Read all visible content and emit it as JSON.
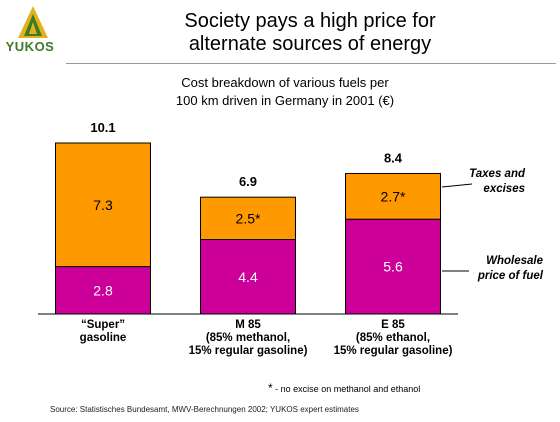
{
  "brand": {
    "name": "YUKOS",
    "icon": "yukos-flame-logo",
    "color": "#3c7a2a"
  },
  "title_line1": "Society pays a high price for",
  "title_line2": "alternate sources of energy",
  "subtitle_line1": "Cost breakdown of various fuels per",
  "subtitle_line2": "100 km driven in Germany in 2001 (€)",
  "footnote_marker": "*",
  "footnote_text": " - no excise on methanol and ethanol",
  "source": "Source: Statistisches Bundesamt, MWV-Berechnungen 2002; YUKOS expert estimates",
  "colors": {
    "wholesale": "#cc0099",
    "taxes": "#ff9900",
    "outline": "#000000"
  },
  "chart_data": {
    "type": "bar",
    "stacked": true,
    "categories": [
      [
        "“Super”",
        "gasoline"
      ],
      [
        "M 85",
        "(85% methanol,",
        "15% regular gasoline)"
      ],
      [
        "E 85",
        "(85% ethanol,",
        "15% regular gasoline)"
      ]
    ],
    "series": [
      {
        "name": "Wholesale price of fuel",
        "legend_lines": [
          "Wholesale",
          "price of fuel"
        ],
        "values": [
          2.8,
          4.4,
          5.6
        ],
        "labels": [
          "2.8",
          "4.4",
          "5.6"
        ]
      },
      {
        "name": "Taxes and excises",
        "legend_lines": [
          "Taxes and",
          "excises"
        ],
        "values": [
          7.3,
          2.5,
          2.7
        ],
        "labels": [
          "7.3",
          "2.5*",
          "2.7*"
        ]
      }
    ],
    "totals": [
      "10.1",
      "6.9",
      "8.4"
    ],
    "ylim": [
      0,
      10.1
    ],
    "legend_position": "right",
    "grid": false,
    "axes_visible": false
  }
}
